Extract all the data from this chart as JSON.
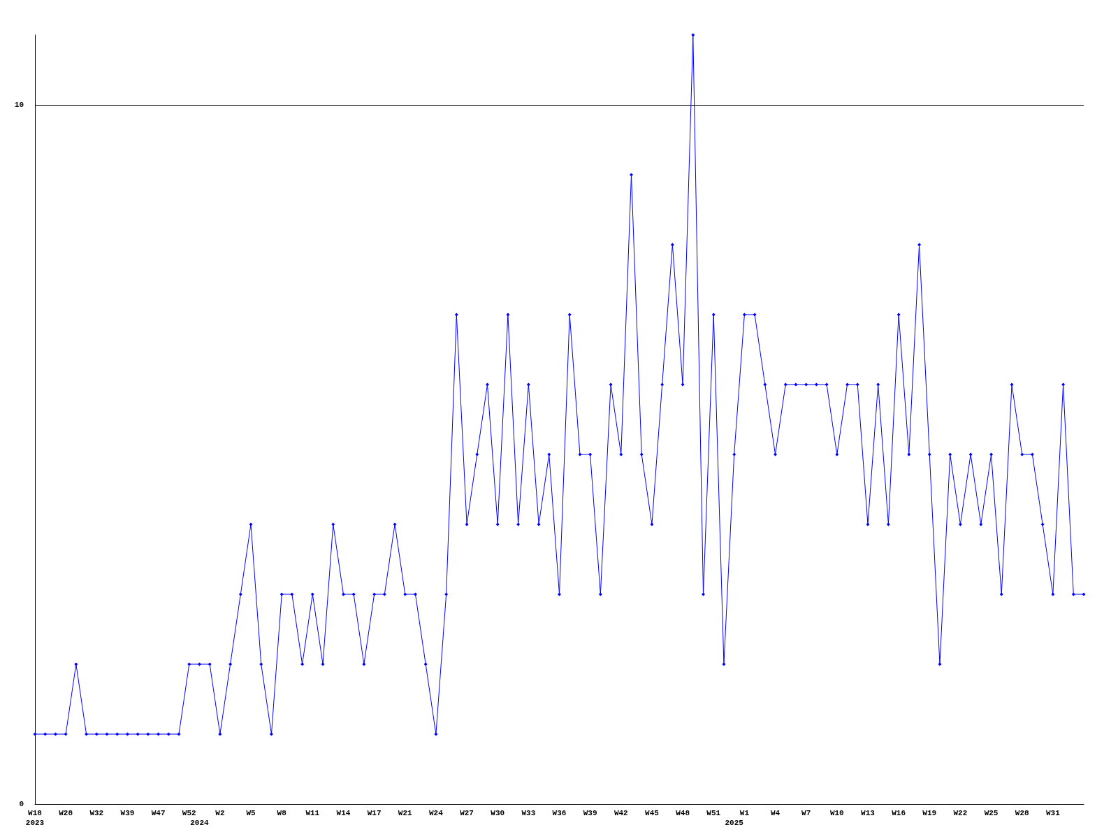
{
  "chart_data": {
    "type": "line",
    "categories": [
      "W18\n2023",
      null,
      null,
      "W28",
      null,
      null,
      "W32",
      null,
      null,
      "W39",
      null,
      null,
      "W47",
      null,
      null,
      "W52",
      "\n2024",
      null,
      "W2",
      null,
      null,
      "W5",
      null,
      null,
      "W8",
      null,
      null,
      "W11",
      null,
      null,
      "W14",
      null,
      null,
      "W17",
      null,
      null,
      "W21",
      null,
      null,
      "W24",
      null,
      null,
      "W27",
      null,
      null,
      "W30",
      null,
      null,
      "W33",
      null,
      null,
      "W36",
      null,
      null,
      "W39",
      null,
      null,
      "W42",
      null,
      null,
      "W45",
      null,
      null,
      "W48",
      null,
      null,
      "W51",
      null,
      "\n2025",
      "W1",
      null,
      null,
      "W4",
      null,
      null,
      "W7",
      null,
      null,
      "W10",
      null,
      null,
      "W13",
      null,
      null,
      "W16",
      null,
      null,
      "W19",
      null,
      null,
      "W22",
      null,
      null,
      "W25",
      null,
      null,
      "W28",
      null,
      null,
      "W31",
      null,
      null,
      null
    ],
    "series": [
      {
        "color": "#0000ff",
        "values": [
          1,
          1,
          1,
          1,
          2,
          1,
          1,
          1,
          1,
          1,
          1,
          1,
          1,
          1,
          1,
          2,
          2,
          2,
          1,
          2,
          3,
          4,
          2,
          1,
          3,
          3,
          2,
          3,
          2,
          4,
          3,
          3,
          2,
          3,
          3,
          4,
          3,
          3,
          2,
          1,
          3,
          7,
          4,
          5,
          6,
          4,
          7,
          4,
          6,
          4,
          5,
          3,
          7,
          5,
          5,
          3,
          6,
          5,
          9,
          5,
          4,
          6,
          8,
          6,
          11,
          3,
          7,
          2,
          5,
          7,
          7,
          6,
          5,
          6,
          6,
          6,
          6,
          6,
          5,
          6,
          6,
          4,
          6,
          4,
          7,
          5,
          8,
          5,
          2,
          5,
          4,
          5,
          4,
          5,
          3,
          6,
          5,
          5,
          4,
          3,
          6,
          3,
          3
        ]
      }
    ],
    "ylim": [
      0,
      11
    ],
    "yticks": [
      0,
      10
    ],
    "grid": "y",
    "marker": "diamond",
    "line_style": "solid"
  }
}
